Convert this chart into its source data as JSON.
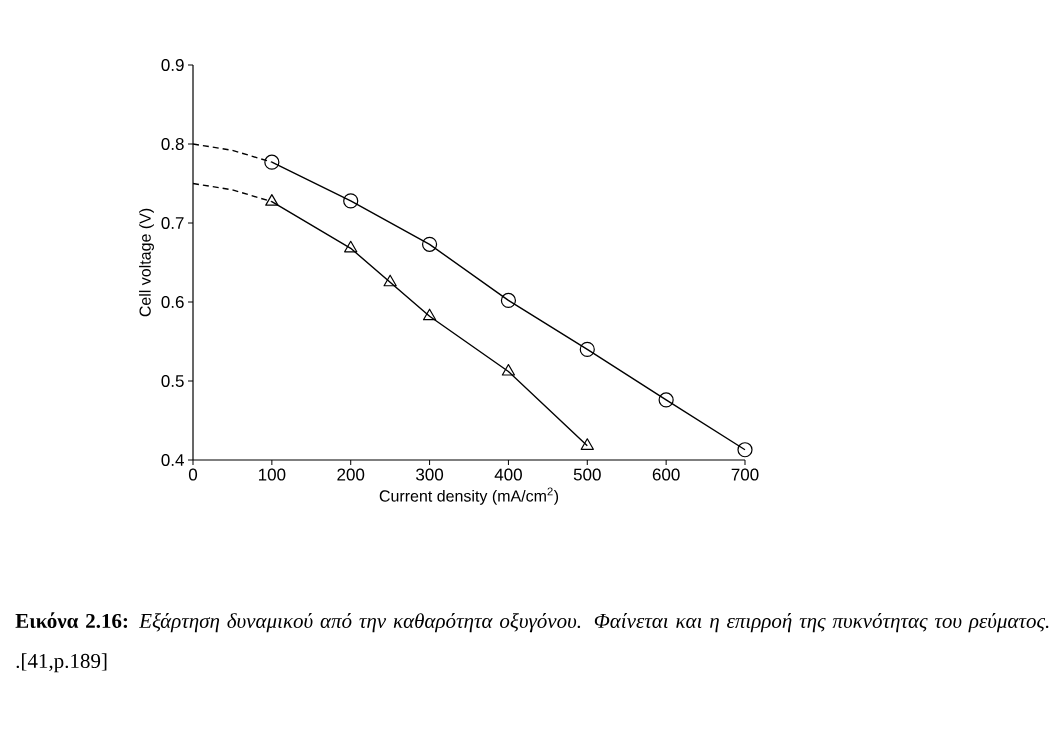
{
  "chart_data": {
    "type": "line",
    "xlabel": "Current density (mA/cm$^{2}$)",
    "ylabel": "Cell voltage (V)",
    "xlim": [
      0,
      700
    ],
    "ylim": [
      0.4,
      0.9
    ],
    "xticks": [
      0,
      100,
      200,
      300,
      400,
      500,
      600,
      700
    ],
    "yticks": [
      0.4,
      0.5,
      0.6,
      0.7,
      0.8,
      0.9
    ],
    "series": [
      {
        "color": "#000000",
        "marker": "circle",
        "line_style": "solid",
        "x": [
          100,
          200,
          300,
          400,
          500,
          600,
          700
        ],
        "values": [
          0.777,
          0.728,
          0.673,
          0.602,
          0.54,
          0.476,
          0.413
        ]
      },
      {
        "color": "#000000",
        "marker": "triangle",
        "line_style": "solid",
        "x": [
          100,
          200,
          250,
          300,
          400,
          500
        ],
        "values": [
          0.727,
          0.668,
          0.625,
          0.582,
          0.512,
          0.418
        ]
      },
      {
        "color": "#000000",
        "marker": "none",
        "line_style": "dashed",
        "x": [
          0,
          50,
          100
        ],
        "values": [
          0.8,
          0.792,
          0.777
        ]
      },
      {
        "color": "#000000",
        "marker": "none",
        "line_style": "dashed",
        "x": [
          0,
          50,
          100
        ],
        "values": [
          0.75,
          0.742,
          0.727
        ]
      }
    ],
    "annotations": [
      "**Εικόνα 2.16:** *Εξάρτηση δυναμικού από την καθαρότητα οξυγόνου. Φαίνεται και η επιρροή της πυκνότητας του ρεύματος.* .[41,p.189]"
    ]
  }
}
